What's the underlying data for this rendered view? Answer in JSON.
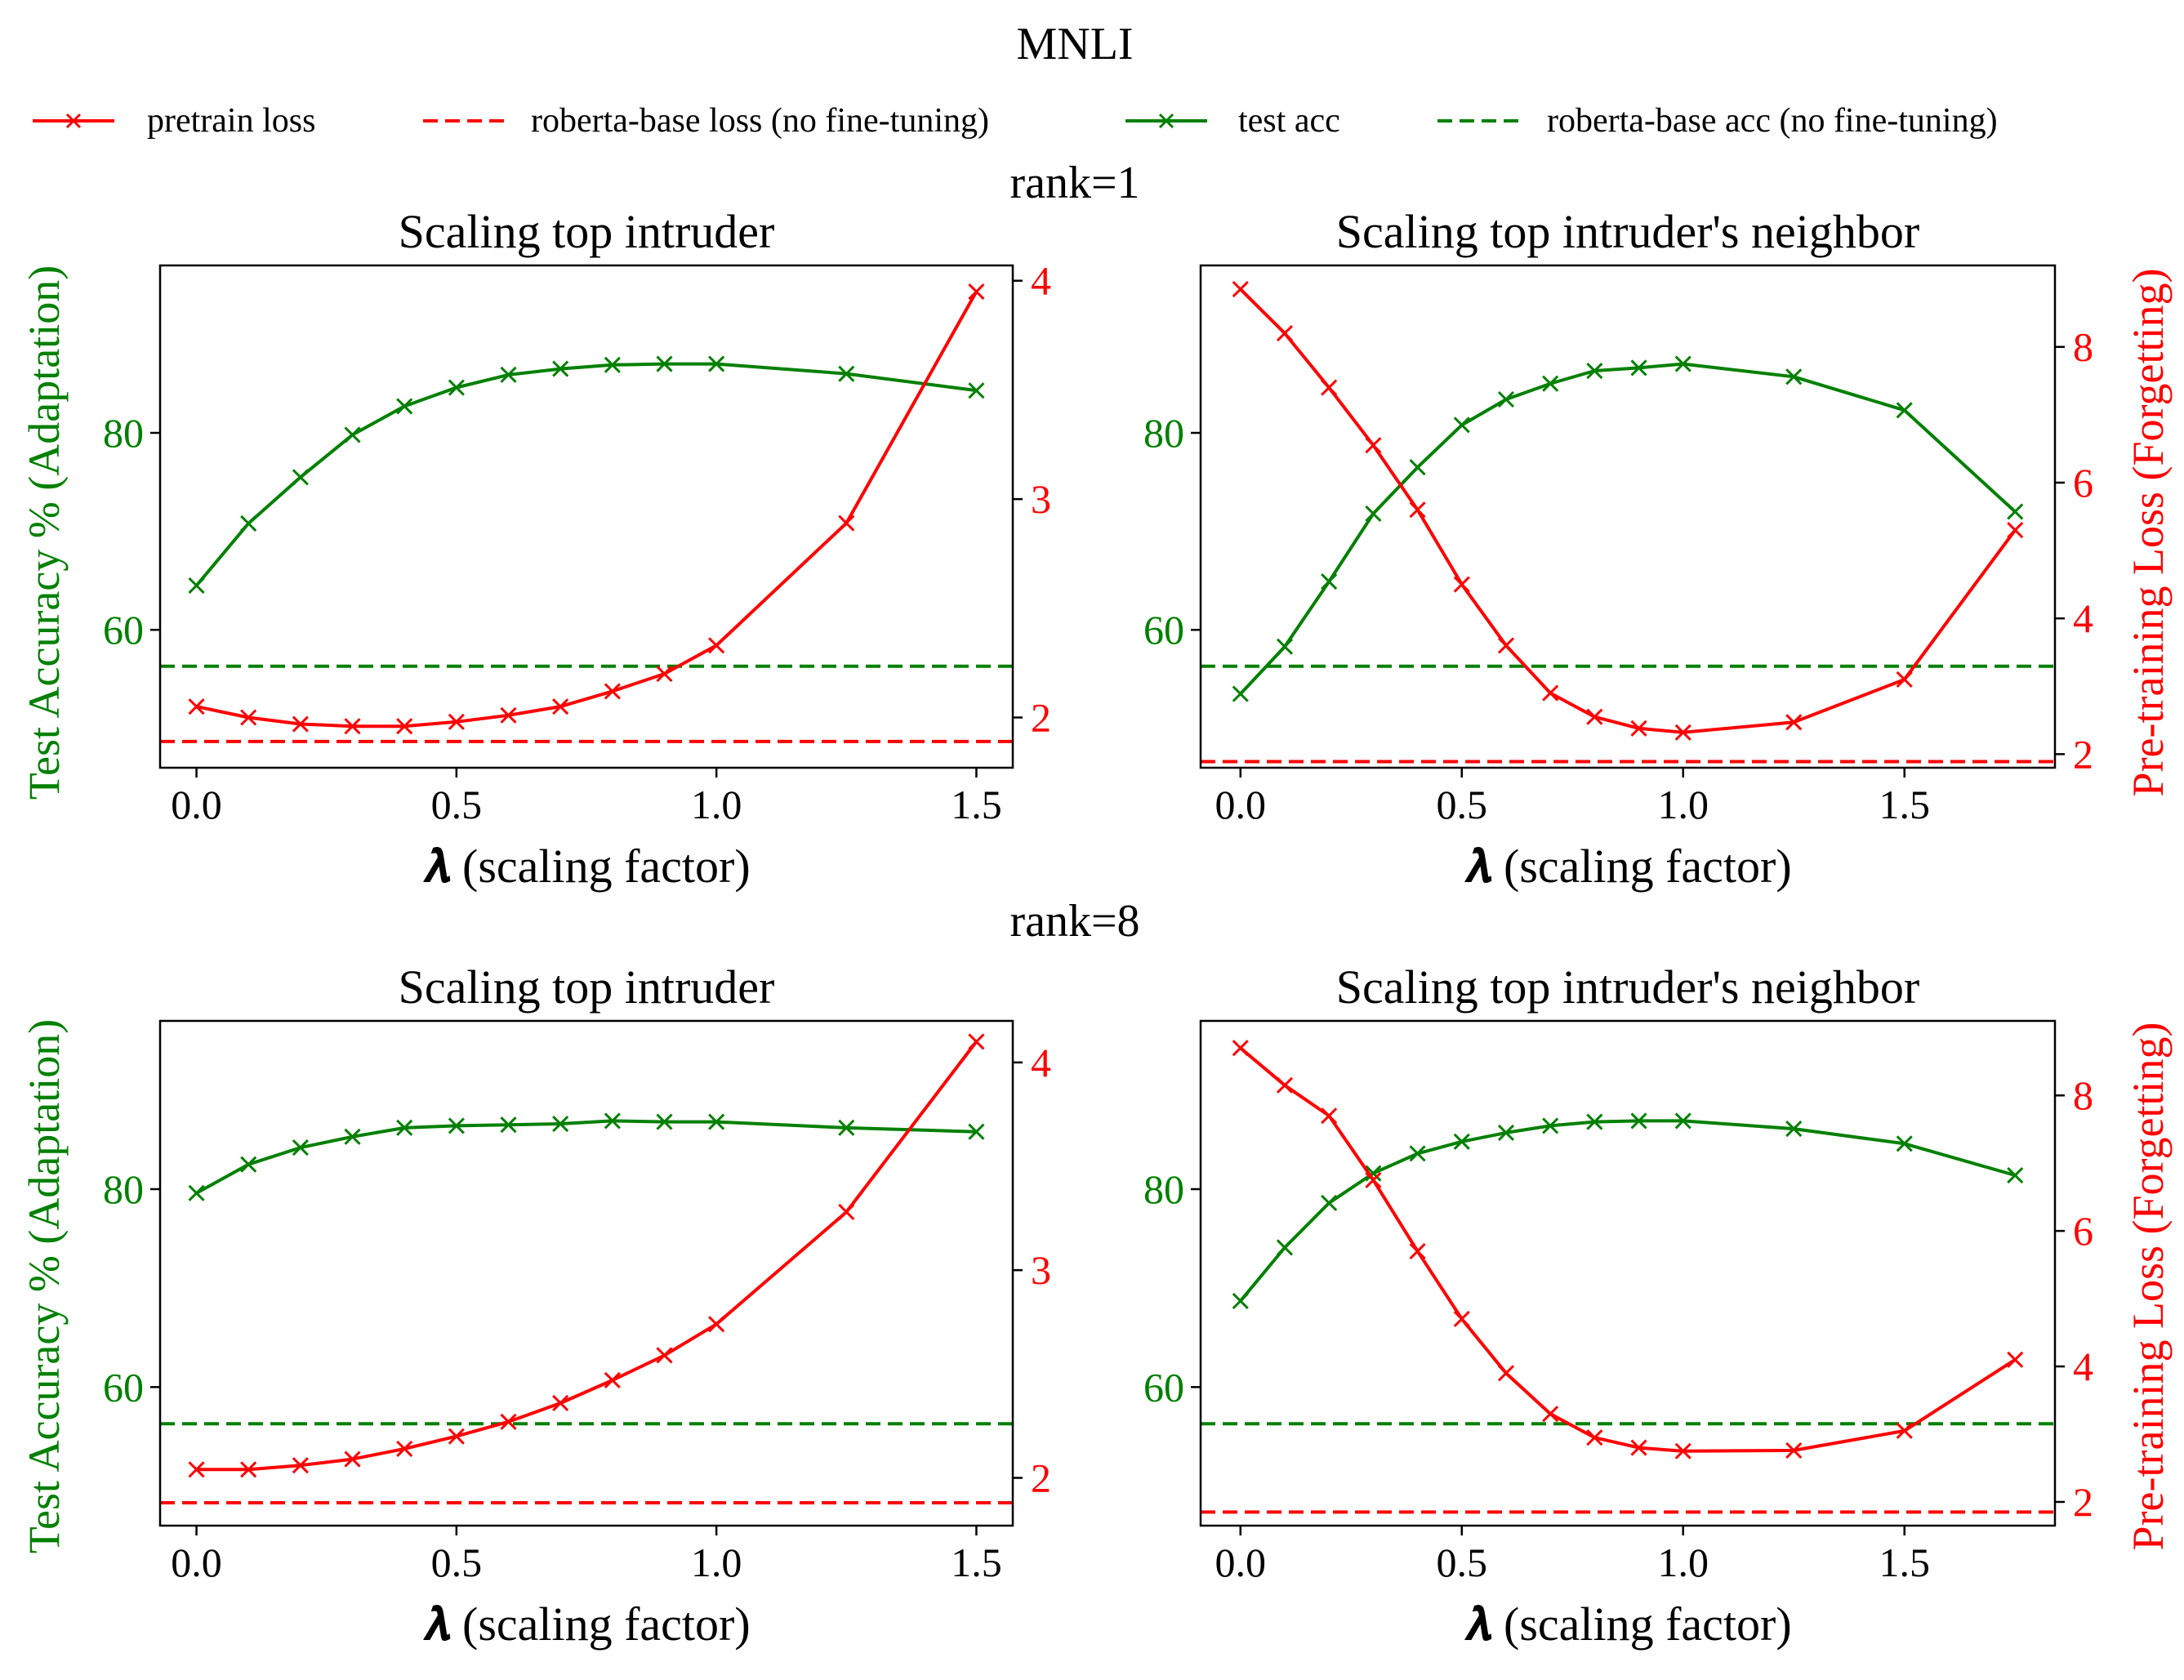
{
  "figure": {
    "title": "MNLI",
    "row_titles": [
      "rank=1",
      "rank=8"
    ],
    "left_ylabel": "Test Accuracy % (Adaptation)",
    "right_ylabel": "Pre-training Loss (Forgetting)",
    "xlabel": "𝝀 (scaling factor)"
  },
  "legend": {
    "placement": "top",
    "entries": [
      {
        "label": "pretrain loss",
        "color": "#ff0000",
        "style": "solid",
        "marker": "x"
      },
      {
        "label": "roberta-base loss (no fine-tuning)",
        "color": "#ff0000",
        "style": "dashed",
        "marker": "none"
      },
      {
        "label": "test acc",
        "color": "#008000",
        "style": "solid",
        "marker": "x"
      },
      {
        "label": "roberta-base acc (no fine-tuning)",
        "color": "#008000",
        "style": "dashed",
        "marker": "none"
      }
    ]
  },
  "colors": {
    "acc": "#008000",
    "loss": "#ff0000"
  },
  "chart_data": [
    {
      "type": "line",
      "title": "Scaling top intruder",
      "row": "rank=1",
      "xlabel": "𝝀 (scaling factor)",
      "xlim": [
        -0.07,
        1.57
      ],
      "xticks": [
        0.0,
        0.5,
        1.0,
        1.5
      ],
      "ylim_left": [
        46,
        97
      ],
      "yticks_left": [
        60,
        80
      ],
      "ylim_right": [
        1.77,
        4.07
      ],
      "yticks_right": [
        2,
        3,
        4
      ],
      "x": [
        0,
        0.1,
        0.2,
        0.3,
        0.4,
        0.5,
        0.6,
        0.7,
        0.8,
        0.9,
        1.0,
        1.25,
        1.5
      ],
      "series": [
        {
          "name": "test acc",
          "axis": "left",
          "values": [
            64.5,
            70.8,
            75.5,
            79.8,
            82.7,
            84.6,
            85.9,
            86.5,
            86.9,
            87.0,
            87.0,
            86.0,
            84.3
          ]
        },
        {
          "name": "pretrain loss",
          "axis": "right",
          "values": [
            2.05,
            2.0,
            1.97,
            1.96,
            1.96,
            1.98,
            2.01,
            2.05,
            2.12,
            2.2,
            2.33,
            2.89,
            3.95
          ]
        }
      ],
      "baselines": [
        {
          "name": "roberta-base acc (no fine-tuning)",
          "axis": "left",
          "value": 56.3
        },
        {
          "name": "roberta-base loss (no fine-tuning)",
          "axis": "right",
          "value": 1.89
        }
      ]
    },
    {
      "type": "line",
      "title": "Scaling top intruder's neighbor",
      "row": "rank=1",
      "xlabel": "𝝀 (scaling factor)",
      "xlim": [
        -0.09,
        1.84
      ],
      "xticks": [
        0.0,
        0.5,
        1.0,
        1.5
      ],
      "ylim_left": [
        46,
        97
      ],
      "yticks_left": [
        60,
        80
      ],
      "ylim_right": [
        1.8,
        9.2
      ],
      "yticks_right": [
        2,
        4,
        6,
        8
      ],
      "x": [
        0,
        0.1,
        0.2,
        0.3,
        0.4,
        0.5,
        0.6,
        0.7,
        0.8,
        0.9,
        1.0,
        1.25,
        1.5,
        1.75
      ],
      "series": [
        {
          "name": "test acc",
          "axis": "left",
          "values": [
            53.5,
            58.3,
            64.9,
            71.8,
            76.5,
            80.8,
            83.4,
            85.0,
            86.3,
            86.6,
            87.0,
            85.7,
            82.3,
            72.0
          ]
        },
        {
          "name": "pretrain loss",
          "axis": "right",
          "values": [
            8.85,
            8.2,
            7.4,
            6.55,
            5.6,
            4.5,
            3.6,
            2.9,
            2.55,
            2.38,
            2.32,
            2.47,
            3.1,
            5.3
          ]
        }
      ],
      "baselines": [
        {
          "name": "roberta-base acc (no fine-tuning)",
          "axis": "left",
          "value": 56.3
        },
        {
          "name": "roberta-base loss (no fine-tuning)",
          "axis": "right",
          "value": 1.89
        }
      ]
    },
    {
      "type": "line",
      "title": "Scaling top intruder",
      "row": "rank=8",
      "xlabel": "𝝀 (scaling factor)",
      "xlim": [
        -0.07,
        1.57
      ],
      "xticks": [
        0.0,
        0.5,
        1.0,
        1.5
      ],
      "ylim_left": [
        46,
        97
      ],
      "yticks_left": [
        60,
        80
      ],
      "ylim_right": [
        1.77,
        4.2
      ],
      "yticks_right": [
        2,
        3,
        4
      ],
      "x": [
        0,
        0.1,
        0.2,
        0.3,
        0.4,
        0.5,
        0.6,
        0.7,
        0.8,
        0.9,
        1.0,
        1.25,
        1.5
      ],
      "series": [
        {
          "name": "test acc",
          "axis": "left",
          "values": [
            79.6,
            82.5,
            84.2,
            85.3,
            86.2,
            86.4,
            86.5,
            86.6,
            86.9,
            86.8,
            86.8,
            86.2,
            85.8
          ]
        },
        {
          "name": "pretrain loss",
          "axis": "right",
          "values": [
            2.04,
            2.04,
            2.06,
            2.09,
            2.14,
            2.2,
            2.27,
            2.36,
            2.47,
            2.59,
            2.74,
            3.28,
            4.1
          ]
        }
      ],
      "baselines": [
        {
          "name": "roberta-base acc (no fine-tuning)",
          "axis": "left",
          "value": 56.3
        },
        {
          "name": "roberta-base loss (no fine-tuning)",
          "axis": "right",
          "value": 1.88
        }
      ]
    },
    {
      "type": "line",
      "title": "Scaling top intruder's neighbor",
      "row": "rank=8",
      "xlabel": "𝝀 (scaling factor)",
      "xlim": [
        -0.09,
        1.84
      ],
      "xticks": [
        0.0,
        0.5,
        1.0,
        1.5
      ],
      "ylim_left": [
        46,
        97
      ],
      "yticks_left": [
        60,
        80
      ],
      "ylim_right": [
        1.65,
        9.1
      ],
      "yticks_right": [
        2,
        4,
        6,
        8
      ],
      "x": [
        0,
        0.1,
        0.2,
        0.3,
        0.4,
        0.5,
        0.6,
        0.7,
        0.8,
        0.9,
        1.0,
        1.25,
        1.5,
        1.75
      ],
      "series": [
        {
          "name": "test acc",
          "axis": "left",
          "values": [
            68.7,
            74.1,
            78.6,
            81.6,
            83.6,
            84.8,
            85.7,
            86.4,
            86.8,
            86.9,
            86.9,
            86.1,
            84.6,
            81.4
          ]
        },
        {
          "name": "pretrain loss",
          "axis": "right",
          "values": [
            8.7,
            8.15,
            7.7,
            6.75,
            5.7,
            4.7,
            3.9,
            3.3,
            2.95,
            2.8,
            2.75,
            2.76,
            3.05,
            4.1
          ]
        }
      ],
      "baselines": [
        {
          "name": "roberta-base acc (no fine-tuning)",
          "axis": "left",
          "value": 56.3
        },
        {
          "name": "roberta-base loss (no fine-tuning)",
          "axis": "right",
          "value": 1.85
        }
      ]
    }
  ]
}
